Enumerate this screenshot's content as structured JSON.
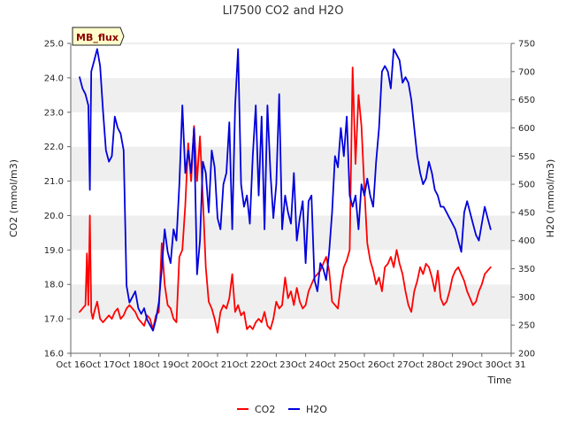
{
  "chart_data": {
    "type": "line",
    "title": "LI7500 CO2 and H2O",
    "xlabel": "Time",
    "ylabel_left": "CO2 (mmol/m3)",
    "ylabel_right": "H2O (mmol/m3)",
    "badge": "MB_flux",
    "x_ticks": [
      "Oct 16",
      "Oct 17",
      "Oct 18",
      "Oct 19",
      "Oct 20",
      "Oct 21",
      "Oct 22",
      "Oct 23",
      "Oct 24",
      "Oct 25",
      "Oct 26",
      "Oct 27",
      "Oct 28",
      "Oct 29",
      "Oct 30",
      "Oct 31"
    ],
    "xlim": [
      16,
      31
    ],
    "ylim_left": [
      16.0,
      25.0
    ],
    "ylim_right": [
      200,
      750
    ],
    "y_ticks_left": [
      "16.0",
      "17.0",
      "18.0",
      "19.0",
      "20.0",
      "21.0",
      "22.0",
      "23.0",
      "24.0",
      "25.0"
    ],
    "y_ticks_right": [
      "200",
      "250",
      "300",
      "350",
      "400",
      "450",
      "500",
      "550",
      "600",
      "650",
      "700",
      "750"
    ],
    "grid": "horizontal alternating bands",
    "legend_position": "bottom-center",
    "series": [
      {
        "name": "CO2",
        "axis": "left",
        "color": "#ff0000",
        "x": [
          16.3,
          16.4,
          16.5,
          16.55,
          16.6,
          16.65,
          16.7,
          16.75,
          16.8,
          16.9,
          17.0,
          17.1,
          17.2,
          17.3,
          17.4,
          17.5,
          17.6,
          17.7,
          17.8,
          17.9,
          18.0,
          18.1,
          18.2,
          18.3,
          18.4,
          18.5,
          18.6,
          18.7,
          18.8,
          18.9,
          19.0,
          19.1,
          19.2,
          19.3,
          19.4,
          19.5,
          19.6,
          19.7,
          19.8,
          19.9,
          20.0,
          20.1,
          20.2,
          20.3,
          20.4,
          20.5,
          20.6,
          20.7,
          20.8,
          20.9,
          21.0,
          21.1,
          21.2,
          21.3,
          21.4,
          21.5,
          21.6,
          21.7,
          21.8,
          21.9,
          22.0,
          22.1,
          22.2,
          22.3,
          22.4,
          22.5,
          22.6,
          22.7,
          22.8,
          22.9,
          23.0,
          23.1,
          23.2,
          23.3,
          23.4,
          23.5,
          23.6,
          23.7,
          23.8,
          23.9,
          24.0,
          24.1,
          24.2,
          24.3,
          24.4,
          24.5,
          24.6,
          24.7,
          24.8,
          24.9,
          25.0,
          25.1,
          25.2,
          25.3,
          25.4,
          25.5,
          25.6,
          25.7,
          25.8,
          25.9,
          26.0,
          26.1,
          26.2,
          26.3,
          26.4,
          26.5,
          26.6,
          26.7,
          26.8,
          26.9,
          27.0,
          27.1,
          27.2,
          27.3,
          27.4,
          27.5,
          27.6,
          27.7,
          27.8,
          27.9,
          28.0,
          28.1,
          28.2,
          28.3,
          28.4,
          28.5,
          28.6,
          28.7,
          28.8,
          28.9,
          29.0,
          29.1,
          29.2,
          29.3,
          29.4,
          29.5,
          29.6,
          29.7,
          29.8,
          29.9,
          30.0,
          30.1,
          30.2,
          30.3
        ],
        "values": [
          17.2,
          17.3,
          17.4,
          18.9,
          17.4,
          20.0,
          17.2,
          17.0,
          17.2,
          17.5,
          17.0,
          16.9,
          17.0,
          17.1,
          17.0,
          17.2,
          17.3,
          17.0,
          17.1,
          17.3,
          17.4,
          17.3,
          17.2,
          17.0,
          16.9,
          16.8,
          17.1,
          17.0,
          16.7,
          17.1,
          17.2,
          19.2,
          18.0,
          17.4,
          17.3,
          17.0,
          16.9,
          18.8,
          19.0,
          20.3,
          22.1,
          21.0,
          22.6,
          21.0,
          22.3,
          20.5,
          18.5,
          17.5,
          17.3,
          17.0,
          16.6,
          17.2,
          17.4,
          17.3,
          17.6,
          18.3,
          17.2,
          17.4,
          17.1,
          17.2,
          16.7,
          16.8,
          16.7,
          16.9,
          17.0,
          16.9,
          17.2,
          16.8,
          16.7,
          17.0,
          17.5,
          17.3,
          17.4,
          18.2,
          17.6,
          17.8,
          17.4,
          17.9,
          17.5,
          17.3,
          17.4,
          17.8,
          18.0,
          18.2,
          18.3,
          18.4,
          18.6,
          18.8,
          18.4,
          17.5,
          17.4,
          17.3,
          18.0,
          18.5,
          18.7,
          19.0,
          24.3,
          21.5,
          23.5,
          22.6,
          20.8,
          19.2,
          18.7,
          18.4,
          18.0,
          18.2,
          17.8,
          18.5,
          18.6,
          18.8,
          18.5,
          19.0,
          18.6,
          18.3,
          17.8,
          17.4,
          17.2,
          17.8,
          18.1,
          18.5,
          18.3,
          18.6,
          18.5,
          18.2,
          17.8,
          18.4,
          17.6,
          17.4,
          17.5,
          17.8,
          18.2,
          18.4,
          18.5,
          18.3,
          18.1,
          17.8,
          17.6,
          17.4,
          17.5,
          17.8,
          18.0,
          18.3,
          18.4,
          18.5
        ],
        "note_series_shape": "dense daily-variation line"
      },
      {
        "name": "H2O",
        "axis": "right",
        "color": "#0000dd",
        "x": [
          16.3,
          16.4,
          16.5,
          16.6,
          16.65,
          16.7,
          16.8,
          16.9,
          17.0,
          17.1,
          17.2,
          17.3,
          17.4,
          17.5,
          17.6,
          17.7,
          17.8,
          17.9,
          18.0,
          18.1,
          18.2,
          18.3,
          18.4,
          18.5,
          18.6,
          18.7,
          18.8,
          18.9,
          19.0,
          19.1,
          19.2,
          19.3,
          19.4,
          19.5,
          19.6,
          19.7,
          19.8,
          19.9,
          20.0,
          20.1,
          20.2,
          20.3,
          20.4,
          20.5,
          20.6,
          20.7,
          20.8,
          20.9,
          21.0,
          21.1,
          21.2,
          21.3,
          21.4,
          21.5,
          21.6,
          21.7,
          21.8,
          21.9,
          22.0,
          22.1,
          22.2,
          22.3,
          22.4,
          22.5,
          22.6,
          22.7,
          22.8,
          22.9,
          23.0,
          23.1,
          23.2,
          23.3,
          23.4,
          23.5,
          23.6,
          23.7,
          23.8,
          23.9,
          24.0,
          24.1,
          24.2,
          24.3,
          24.4,
          24.5,
          24.6,
          24.7,
          24.8,
          24.9,
          25.0,
          25.1,
          25.2,
          25.3,
          25.4,
          25.5,
          25.6,
          25.7,
          25.8,
          25.9,
          26.0,
          26.1,
          26.2,
          26.3,
          26.4,
          26.5,
          26.6,
          26.7,
          26.8,
          26.9,
          27.0,
          27.1,
          27.2,
          27.3,
          27.4,
          27.5,
          27.6,
          27.7,
          27.8,
          27.9,
          28.0,
          28.1,
          28.2,
          28.3,
          28.4,
          28.5,
          28.6,
          28.7,
          28.8,
          28.9,
          29.0,
          29.1,
          29.2,
          29.3,
          29.4,
          29.5,
          29.6,
          29.7,
          29.8,
          29.9,
          30.0,
          30.1,
          30.2,
          30.3
        ],
        "values": [
          690,
          670,
          660,
          640,
          490,
          700,
          720,
          740,
          710,
          630,
          560,
          540,
          550,
          620,
          600,
          590,
          560,
          320,
          290,
          300,
          310,
          280,
          270,
          280,
          260,
          250,
          240,
          260,
          290,
          350,
          420,
          380,
          360,
          420,
          400,
          500,
          640,
          520,
          560,
          520,
          600,
          340,
          400,
          540,
          520,
          450,
          560,
          530,
          440,
          420,
          500,
          520,
          610,
          420,
          640,
          740,
          500,
          460,
          480,
          430,
          550,
          640,
          480,
          620,
          420,
          640,
          520,
          440,
          500,
          660,
          420,
          480,
          450,
          430,
          520,
          400,
          440,
          470,
          360,
          470,
          480,
          330,
          310,
          360,
          350,
          330,
          380,
          450,
          550,
          530,
          600,
          550,
          620,
          480,
          460,
          480,
          420,
          500,
          480,
          510,
          480,
          460,
          540,
          600,
          700,
          710,
          700,
          670,
          740,
          730,
          720,
          680,
          690,
          680,
          650,
          600,
          550,
          520,
          500,
          510,
          540,
          520,
          490,
          480,
          460,
          460,
          450,
          440,
          430,
          420,
          400,
          380,
          450,
          470,
          450,
          430,
          410,
          400,
          430,
          460,
          440,
          420
        ],
        "note_series_shape": "dense daily-variation line"
      }
    ]
  }
}
